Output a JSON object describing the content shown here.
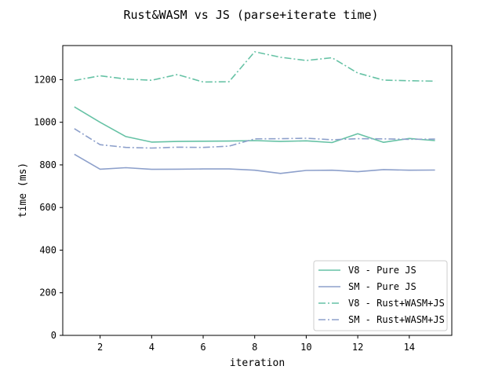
{
  "chart_data": {
    "type": "line",
    "title": "Rust&WASM vs JS (parse+iterate time)",
    "xlabel": "iteration",
    "ylabel": "time (ms)",
    "xlim": [
      0.55,
      15.65
    ],
    "ylim": [
      0,
      1360
    ],
    "xticks": [
      2,
      4,
      6,
      8,
      10,
      12,
      14
    ],
    "yticks": [
      0,
      200,
      400,
      600,
      800,
      1000,
      1200
    ],
    "grid": false,
    "legend_position": "lower-right",
    "x": [
      1,
      2,
      3,
      4,
      5,
      6,
      7,
      8,
      9,
      10,
      11,
      12,
      13,
      14,
      15
    ],
    "series": [
      {
        "name": "V8 - Pure JS",
        "color": "#66c2a5",
        "dash": "solid",
        "values": [
          1072,
          1000,
          933,
          907,
          910,
          911,
          912,
          914,
          910,
          913,
          905,
          946,
          906,
          924,
          914
        ]
      },
      {
        "name": "SM - Pure JS",
        "color": "#8da0cb",
        "dash": "solid",
        "values": [
          850,
          780,
          787,
          779,
          780,
          781,
          781,
          775,
          760,
          774,
          775,
          768,
          778,
          775,
          776
        ]
      },
      {
        "name": "V8 - Rust+WASM+JS",
        "color": "#66c2a5",
        "dash": "dashdot",
        "values": [
          1196,
          1218,
          1203,
          1197,
          1224,
          1189,
          1190,
          1331,
          1305,
          1290,
          1303,
          1231,
          1198,
          1195,
          1193
        ]
      },
      {
        "name": "SM - Rust+WASM+JS",
        "color": "#8da0cb",
        "dash": "dashdot",
        "values": [
          970,
          895,
          882,
          879,
          883,
          882,
          888,
          922,
          923,
          925,
          918,
          923,
          922,
          920,
          921
        ]
      }
    ]
  }
}
